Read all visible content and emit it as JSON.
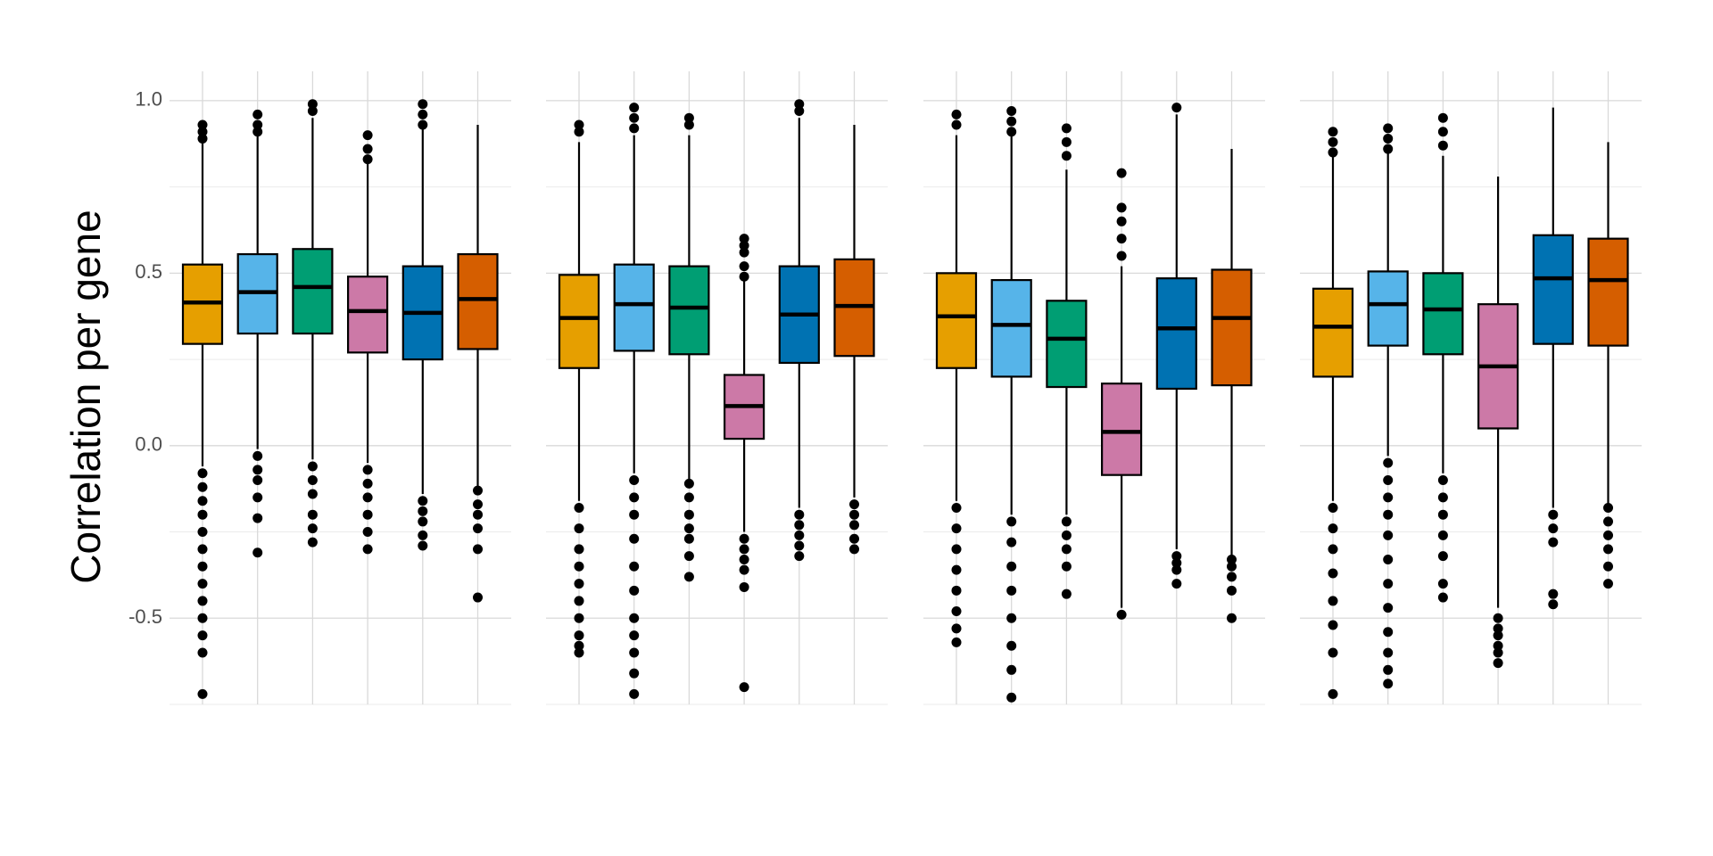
{
  "chart_data": [
    {
      "type": "box",
      "y_label": "Correlation per gene",
      "ylim": [
        -0.75,
        1.085
      ],
      "yticks": [
        {
          "value": 1,
          "label": "1.0"
        },
        0.5,
        {
          "value": 0,
          "label": "0.0"
        },
        -0.5
      ],
      "minor_yticks": [
        0.75,
        0.25,
        -0.25,
        -0.75
      ],
      "colors": [
        "#E69F00",
        "#56B4E9",
        "#009E73",
        "#CC79A7",
        "#0072B2",
        "#D55E00"
      ],
      "boxes": [
        {
          "min": -0.06,
          "q1": 0.295,
          "median": 0.415,
          "q3": 0.525,
          "max": 0.88,
          "outliers": [
            0.93,
            0.91,
            0.89,
            -0.08,
            -0.12,
            -0.16,
            -0.2,
            -0.25,
            -0.3,
            -0.35,
            -0.4,
            -0.45,
            -0.5,
            -0.55,
            -0.6,
            -0.72
          ]
        },
        {
          "min": -0.01,
          "q1": 0.325,
          "median": 0.445,
          "q3": 0.555,
          "max": 0.9,
          "outliers": [
            0.96,
            0.93,
            0.91,
            -0.03,
            -0.07,
            -0.1,
            -0.15,
            -0.21,
            -0.31
          ]
        },
        {
          "min": -0.04,
          "q1": 0.325,
          "median": 0.46,
          "q3": 0.57,
          "max": 0.95,
          "outliers": [
            0.99,
            0.97,
            -0.06,
            -0.1,
            -0.14,
            -0.2,
            -0.24,
            -0.28
          ]
        },
        {
          "min": -0.05,
          "q1": 0.27,
          "median": 0.39,
          "q3": 0.49,
          "max": 0.82,
          "outliers": [
            0.9,
            0.86,
            0.83,
            -0.07,
            -0.11,
            -0.15,
            -0.2,
            -0.25,
            -0.3
          ]
        },
        {
          "min": -0.14,
          "q1": 0.25,
          "median": 0.385,
          "q3": 0.52,
          "max": 0.92,
          "outliers": [
            0.99,
            0.96,
            0.93,
            -0.16,
            -0.19,
            -0.22,
            -0.26,
            -0.29
          ]
        },
        {
          "min": -0.12,
          "q1": 0.28,
          "median": 0.425,
          "q3": 0.555,
          "max": 0.93,
          "outliers": [
            -0.13,
            -0.17,
            -0.2,
            -0.24,
            -0.3,
            -0.44
          ]
        }
      ]
    },
    {
      "type": "box",
      "ylim": [
        -0.75,
        1.085
      ],
      "colors": [
        "#E69F00",
        "#56B4E9",
        "#009E73",
        "#CC79A7",
        "#0072B2",
        "#D55E00"
      ],
      "boxes": [
        {
          "min": -0.16,
          "q1": 0.225,
          "median": 0.37,
          "q3": 0.495,
          "max": 0.88,
          "outliers": [
            0.93,
            0.91,
            -0.18,
            -0.24,
            -0.3,
            -0.35,
            -0.4,
            -0.45,
            -0.5,
            -0.55,
            -0.58,
            -0.6
          ]
        },
        {
          "min": -0.08,
          "q1": 0.275,
          "median": 0.41,
          "q3": 0.525,
          "max": 0.9,
          "outliers": [
            0.98,
            0.95,
            0.92,
            -0.1,
            -0.15,
            -0.2,
            -0.27,
            -0.35,
            -0.42,
            -0.5,
            -0.55,
            -0.6,
            -0.66,
            -0.72
          ]
        },
        {
          "min": -0.1,
          "q1": 0.265,
          "median": 0.4,
          "q3": 0.52,
          "max": 0.9,
          "outliers": [
            0.95,
            0.93,
            -0.11,
            -0.15,
            -0.2,
            -0.24,
            -0.27,
            -0.32,
            -0.38
          ]
        },
        {
          "min": -0.25,
          "q1": 0.02,
          "median": 0.115,
          "q3": 0.205,
          "max": 0.48,
          "outliers": [
            0.6,
            0.58,
            0.56,
            0.52,
            0.49,
            -0.27,
            -0.3,
            -0.33,
            -0.36,
            -0.41,
            -0.7
          ]
        },
        {
          "min": -0.18,
          "q1": 0.24,
          "median": 0.38,
          "q3": 0.52,
          "max": 0.95,
          "outliers": [
            0.99,
            0.97,
            -0.2,
            -0.23,
            -0.26,
            -0.29,
            -0.32
          ]
        },
        {
          "min": -0.15,
          "q1": 0.26,
          "median": 0.405,
          "q3": 0.54,
          "max": 0.93,
          "outliers": [
            -0.17,
            -0.2,
            -0.23,
            -0.27,
            -0.3
          ]
        }
      ]
    },
    {
      "type": "box",
      "ylim": [
        -0.75,
        1.085
      ],
      "colors": [
        "#E69F00",
        "#56B4E9",
        "#009E73",
        "#CC79A7",
        "#0072B2",
        "#D55E00"
      ],
      "boxes": [
        {
          "min": -0.16,
          "q1": 0.225,
          "median": 0.375,
          "q3": 0.5,
          "max": 0.9,
          "outliers": [
            0.96,
            0.93,
            -0.18,
            -0.24,
            -0.3,
            -0.36,
            -0.42,
            -0.48,
            -0.53,
            -0.57
          ]
        },
        {
          "min": -0.2,
          "q1": 0.2,
          "median": 0.35,
          "q3": 0.48,
          "max": 0.9,
          "outliers": [
            0.97,
            0.94,
            0.91,
            -0.22,
            -0.28,
            -0.35,
            -0.42,
            -0.5,
            -0.58,
            -0.65,
            -0.73
          ]
        },
        {
          "min": -0.2,
          "q1": 0.17,
          "median": 0.31,
          "q3": 0.42,
          "max": 0.8,
          "outliers": [
            0.92,
            0.88,
            0.84,
            -0.22,
            -0.26,
            -0.3,
            -0.35,
            -0.43
          ]
        },
        {
          "min": -0.47,
          "q1": -0.085,
          "median": 0.04,
          "q3": 0.18,
          "max": 0.52,
          "outliers": [
            0.79,
            0.69,
            0.65,
            0.6,
            0.55,
            -0.49
          ]
        },
        {
          "min": -0.3,
          "q1": 0.165,
          "median": 0.34,
          "q3": 0.485,
          "max": 0.96,
          "outliers": [
            0.98,
            -0.32,
            -0.34,
            -0.36,
            -0.4
          ]
        },
        {
          "min": -0.32,
          "q1": 0.175,
          "median": 0.37,
          "q3": 0.51,
          "max": 0.86,
          "outliers": [
            -0.33,
            -0.35,
            -0.38,
            -0.42,
            -0.5
          ]
        }
      ]
    },
    {
      "type": "box",
      "ylim": [
        -0.75,
        1.085
      ],
      "colors": [
        "#E69F00",
        "#56B4E9",
        "#009E73",
        "#CC79A7",
        "#0072B2",
        "#D55E00"
      ],
      "boxes": [
        {
          "min": -0.16,
          "q1": 0.2,
          "median": 0.345,
          "q3": 0.455,
          "max": 0.84,
          "outliers": [
            0.91,
            0.88,
            0.85,
            -0.18,
            -0.24,
            -0.3,
            -0.37,
            -0.45,
            -0.52,
            -0.6,
            -0.72
          ]
        },
        {
          "min": -0.03,
          "q1": 0.29,
          "median": 0.41,
          "q3": 0.505,
          "max": 0.85,
          "outliers": [
            0.92,
            0.89,
            0.86,
            -0.05,
            -0.1,
            -0.15,
            -0.2,
            -0.26,
            -0.33,
            -0.4,
            -0.47,
            -0.54,
            -0.6,
            -0.65,
            -0.69
          ]
        },
        {
          "min": -0.08,
          "q1": 0.265,
          "median": 0.395,
          "q3": 0.5,
          "max": 0.84,
          "outliers": [
            0.95,
            0.91,
            0.87,
            -0.1,
            -0.15,
            -0.2,
            -0.26,
            -0.32,
            -0.4,
            -0.44
          ]
        },
        {
          "min": -0.47,
          "q1": 0.05,
          "median": 0.23,
          "q3": 0.41,
          "max": 0.78,
          "outliers": [
            -0.5,
            -0.53,
            -0.55,
            -0.58,
            -0.6,
            -0.63
          ]
        },
        {
          "min": -0.18,
          "q1": 0.295,
          "median": 0.485,
          "q3": 0.61,
          "max": 0.98,
          "outliers": [
            -0.2,
            -0.24,
            -0.28,
            -0.43,
            -0.46
          ]
        },
        {
          "min": -0.17,
          "q1": 0.29,
          "median": 0.48,
          "q3": 0.6,
          "max": 0.88,
          "outliers": [
            -0.18,
            -0.22,
            -0.26,
            -0.3,
            -0.35,
            -0.4
          ]
        }
      ]
    }
  ]
}
